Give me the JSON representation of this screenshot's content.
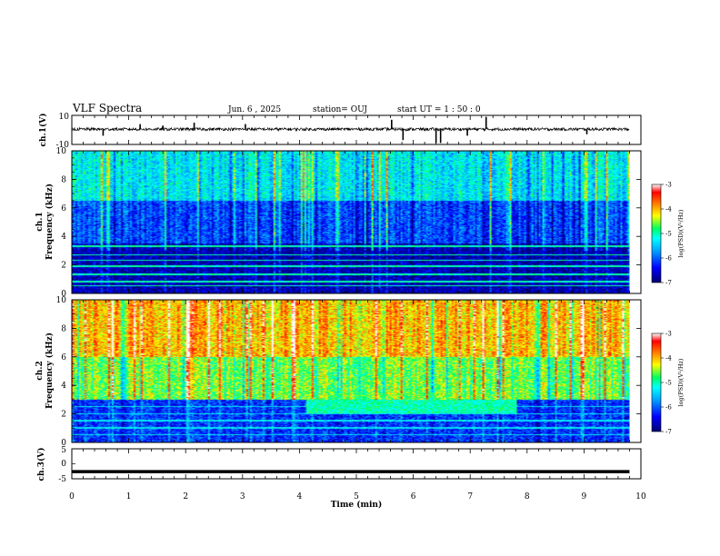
{
  "header": {
    "title": "VLF Spectra",
    "date": "Jun. 6 , 2025",
    "station": "station= OUJ",
    "start": "start  UT =   1 : 50 : 0"
  },
  "chart_data": {
    "type": "heatmap",
    "x_axis": {
      "label": "Time  (min)",
      "range": [
        0,
        10
      ],
      "ticks": [
        0,
        1,
        2,
        3,
        4,
        5,
        6,
        7,
        8,
        9,
        10
      ],
      "data_end_min": 9.8
    },
    "panels": [
      {
        "name": "ch.1 waveform",
        "ylabel": "ch.1(V)",
        "ylim": [
          -10,
          10
        ],
        "y_ticks": [
          "10",
          "-10"
        ],
        "baseline_v": 0.5,
        "noise_v": 1.0,
        "spikes": [
          {
            "t_min": 0.55,
            "v": -4
          },
          {
            "t_min": 1.2,
            "v": 4
          },
          {
            "t_min": 1.6,
            "v": 3
          },
          {
            "t_min": 2.15,
            "v": 5
          },
          {
            "t_min": 3.05,
            "v": 4
          },
          {
            "t_min": 5.62,
            "v": 7
          },
          {
            "t_min": 5.82,
            "v": -7
          },
          {
            "t_min": 6.4,
            "v": -9
          },
          {
            "t_min": 6.48,
            "v": -9
          },
          {
            "t_min": 6.95,
            "v": -4
          },
          {
            "t_min": 7.28,
            "v": 9
          },
          {
            "t_min": 9.05,
            "v": -3
          }
        ]
      },
      {
        "name": "ch.1 spectrogram",
        "ylabel_top": "ch.1",
        "ylabel": "Frequency  (kHz)",
        "ylim": [
          0,
          10
        ],
        "y_ticks": [
          0,
          2,
          4,
          6,
          8,
          10
        ],
        "colorbar": {
          "label": "log(PSD)(V²/Hz)",
          "range": [
            -7,
            -3
          ],
          "ticks": [
            "-3",
            "-4",
            "-5",
            "-6",
            "-7"
          ]
        },
        "power_profile": {
          "low_band_khz": [
            0,
            3.5
          ],
          "low_band_log_psd": -6.7,
          "mid_band_khz": [
            3.5,
            6.5
          ],
          "mid_band_log_psd": -6.1,
          "high_band_khz": [
            6.5,
            10
          ],
          "high_band_log_psd": -5.3
        },
        "tones_khz": [
          0.5,
          0.8,
          1.3,
          1.9,
          2.3,
          2.7,
          3.3
        ],
        "tone_log_psd": -5.0
      },
      {
        "name": "ch.2 spectrogram",
        "ylabel_top": "ch.2",
        "ylabel": "Frequency  (kHz)",
        "ylim": [
          0,
          10
        ],
        "y_ticks": [
          0,
          2,
          4,
          6,
          8,
          10
        ],
        "colorbar": {
          "label": "log(PSD)(V²/Hz)",
          "range": [
            -7,
            -3
          ],
          "ticks": [
            "-3",
            "-4",
            "-5",
            "-6",
            "-7"
          ]
        },
        "power_profile": {
          "low_band_khz": [
            0,
            3.0
          ],
          "low_band_log_psd": -6.2,
          "high_band_khz": [
            3.0,
            10
          ],
          "high_band_log_psd": -4.3
        },
        "enhanced_band": {
          "t_min": [
            4.1,
            7.8
          ],
          "f_khz": [
            2.0,
            3.5
          ],
          "log_psd": -5.0
        },
        "tones_khz": [
          0.5,
          1.0,
          1.5,
          2.0,
          2.5
        ],
        "tone_log_psd": -5.3
      },
      {
        "name": "ch.3 waveform",
        "ylabel": "ch.3(V)",
        "ylim": [
          -5,
          5
        ],
        "y_ticks": [
          "5",
          "0",
          "-5"
        ],
        "baseline_v": -2.6
      }
    ]
  },
  "colors": {
    "colormap": [
      "#000070",
      "#0000ff",
      "#00a0ff",
      "#00ffff",
      "#00ff60",
      "#ffff00",
      "#ff8000",
      "#ff0000",
      "#ffffff"
    ]
  }
}
